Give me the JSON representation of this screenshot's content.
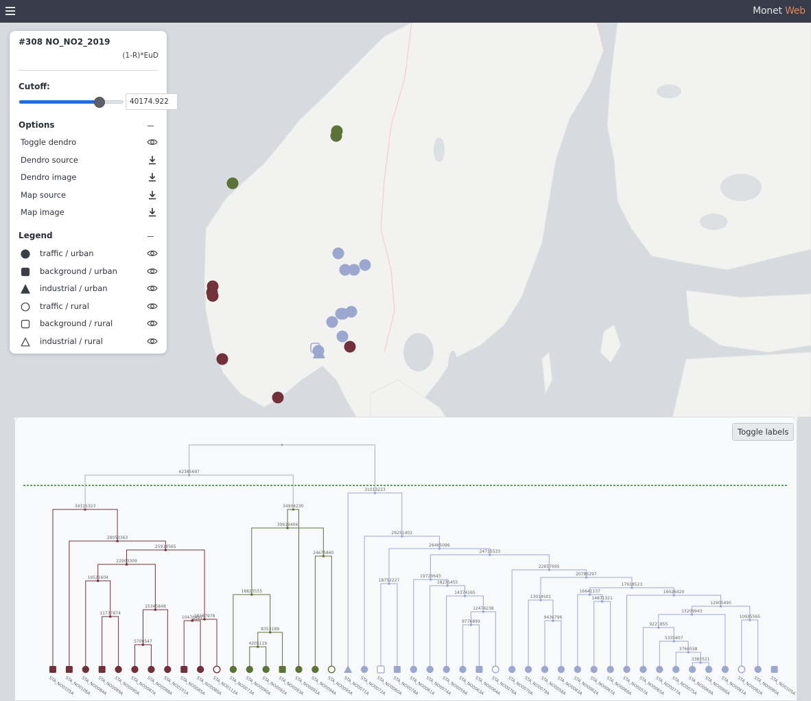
{
  "app": {
    "brand_main": "Monet",
    "brand_accent": "Web"
  },
  "panel": {
    "title": "#308 NO_NO2_2019",
    "subtitle": "(1-R)*EuD",
    "cutoff_label": "Cutoff:",
    "cutoff_value": "40174.922",
    "cutoff_fraction": 0.78,
    "options_title": "Options",
    "options": [
      {
        "label": "Toggle dendro",
        "icon": "eye-icon"
      },
      {
        "label": "Dendro source",
        "icon": "download-icon"
      },
      {
        "label": "Dendro image",
        "icon": "download-icon"
      },
      {
        "label": "Map source",
        "icon": "download-icon"
      },
      {
        "label": "Map image",
        "icon": "download-icon"
      }
    ],
    "legend_title": "Legend",
    "legend": [
      {
        "label": "traffic / urban",
        "symbol": "circle-filled"
      },
      {
        "label": "background / urban",
        "symbol": "square-filled"
      },
      {
        "label": "industrial / urban",
        "symbol": "triangle-filled"
      },
      {
        "label": "traffic / rural",
        "symbol": "circle-outline"
      },
      {
        "label": "background / rural",
        "symbol": "square-outline"
      },
      {
        "label": "industrial / rural",
        "symbol": "triangle-outline"
      }
    ]
  },
  "colors": {
    "cluster_red": "#72303a",
    "cluster_green": "#5b7336",
    "cluster_blue": "#9ba7cf",
    "cutoff_line": "#1f8a1f",
    "root_link": "#a9aeb6"
  },
  "dendro": {
    "toggle_labels": "Toggle labels",
    "leaves": [
      {
        "label": "STA_NO0105A",
        "shape": "square-filled",
        "cluster": "red"
      },
      {
        "label": "STA_NO0106A",
        "shape": "square-filled",
        "cluster": "red"
      },
      {
        "label": "STA_NO0084A",
        "shape": "circle-filled",
        "cluster": "red"
      },
      {
        "label": "STA_NO0089A",
        "shape": "square-filled",
        "cluster": "red"
      },
      {
        "label": "STA_NO0090A",
        "shape": "circle-filled",
        "cluster": "red"
      },
      {
        "label": "STA_NO0087A",
        "shape": "circle-filled",
        "cluster": "red"
      },
      {
        "label": "STA_NO0088A",
        "shape": "circle-filled",
        "cluster": "red"
      },
      {
        "label": "STA_NO0101A",
        "shape": "circle-filled",
        "cluster": "red"
      },
      {
        "label": "STA_NO0085A",
        "shape": "square-filled",
        "cluster": "red"
      },
      {
        "label": "STA_NO0086A",
        "shape": "circle-filled",
        "cluster": "red"
      },
      {
        "label": "STA_NO0112A",
        "shape": "circle-outline",
        "cluster": "red"
      },
      {
        "label": "STA_NO0073A",
        "shape": "circle-filled",
        "cluster": "green"
      },
      {
        "label": "STA_NO0090A",
        "shape": "circle-filled",
        "cluster": "green"
      },
      {
        "label": "STA_NO0092A",
        "shape": "circle-filled",
        "cluster": "green"
      },
      {
        "label": "STA_NO0093A",
        "shape": "square-filled",
        "cluster": "green"
      },
      {
        "label": "STA_NO0091A",
        "shape": "circle-filled",
        "cluster": "green"
      },
      {
        "label": "STA_NO0094A",
        "shape": "circle-filled",
        "cluster": "green"
      },
      {
        "label": "STA_NO0095A",
        "shape": "circle-outline",
        "cluster": "green"
      },
      {
        "label": "STA_NO0071A",
        "shape": "triangle-filled",
        "cluster": "blue"
      },
      {
        "label": "STA_NO0072A",
        "shape": "circle-filled",
        "cluster": "blue"
      },
      {
        "label": "STA_NO0060A",
        "shape": "square-outline",
        "cluster": "blue"
      },
      {
        "label": "STA_NO0078A",
        "shape": "square-filled",
        "cluster": "blue"
      },
      {
        "label": "STA_NO0061A",
        "shape": "circle-filled",
        "cluster": "blue"
      },
      {
        "label": "STA_NO0074A",
        "shape": "circle-filled",
        "cluster": "blue"
      },
      {
        "label": "STA_NO0059A",
        "shape": "circle-filled",
        "cluster": "blue"
      },
      {
        "label": "STA_NO0063A",
        "shape": "circle-filled",
        "cluster": "blue"
      },
      {
        "label": "STA_NO0064A",
        "shape": "square-filled",
        "cluster": "blue"
      },
      {
        "label": "STA_NO0076A",
        "shape": "circle-outline",
        "cluster": "blue"
      },
      {
        "label": "STA_NO0070A",
        "shape": "circle-filled",
        "cluster": "blue"
      },
      {
        "label": "STA_NO0079A",
        "shape": "circle-filled",
        "cluster": "blue"
      },
      {
        "label": "STA_NO0058A",
        "shape": "circle-filled",
        "cluster": "blue"
      },
      {
        "label": "STA_NO0083A",
        "shape": "circle-filled",
        "cluster": "blue"
      },
      {
        "label": "STA_NO0062A",
        "shape": "circle-filled",
        "cluster": "blue"
      },
      {
        "label": "STA_NO0067A",
        "shape": "circle-filled",
        "cluster": "blue"
      },
      {
        "label": "STA_NO0068A",
        "shape": "circle-filled",
        "cluster": "blue"
      },
      {
        "label": "STA_NO0057A",
        "shape": "circle-filled",
        "cluster": "blue"
      },
      {
        "label": "STA_NO0065A",
        "shape": "circle-filled",
        "cluster": "blue"
      },
      {
        "label": "STA_NO0077A",
        "shape": "circle-filled",
        "cluster": "blue"
      },
      {
        "label": "STA_NO0075A",
        "shape": "circle-filled",
        "cluster": "blue"
      },
      {
        "label": "STA_NO0069A",
        "shape": "circle-filled",
        "cluster": "blue"
      },
      {
        "label": "STA_NO0066A",
        "shape": "circle-filled",
        "cluster": "blue"
      },
      {
        "label": "STA_NO0081A",
        "shape": "circle-filled",
        "cluster": "blue"
      },
      {
        "label": "STA_NO0082A",
        "shape": "circle-outline",
        "cluster": "blue"
      },
      {
        "label": "STA_NO0080A",
        "shape": "circle-filled",
        "cluster": "blue"
      },
      {
        "label": "STA_NO0105A",
        "shape": "square-filled",
        "cluster": "blue"
      }
    ],
    "node_labels": [
      "42385697",
      "34315323",
      "34904230",
      "31013223",
      "28053363",
      "25918565",
      "22903309",
      "19521604",
      "11737674",
      "15345848",
      "5700547",
      "10476497",
      "10167978",
      "30619406",
      "24675840",
      "16823555",
      "8353189",
      "4205119",
      "29251402",
      "26465096",
      "24715533",
      "22657695",
      "20785297",
      "18752227",
      "19720645",
      "18235455",
      "14374165",
      "12474238",
      "9776899",
      "17618523",
      "16641137",
      "16026420",
      "13014501",
      "9436796",
      "14871321",
      "13209943",
      "12905490",
      "10935565",
      "9221855",
      "5335607",
      "3766558",
      "3383521"
    ]
  },
  "map": {
    "markers": [
      {
        "shape": "circle-filled",
        "cluster": "green"
      },
      {
        "shape": "circle-filled",
        "cluster": "green"
      },
      {
        "shape": "circle-filled",
        "cluster": "green"
      },
      {
        "shape": "circle-filled",
        "cluster": "red"
      },
      {
        "shape": "circle-filled",
        "cluster": "red"
      },
      {
        "shape": "circle-filled",
        "cluster": "red"
      },
      {
        "shape": "circle-filled",
        "cluster": "red"
      },
      {
        "shape": "circle-filled",
        "cluster": "red"
      },
      {
        "shape": "circle-filled",
        "cluster": "blue"
      },
      {
        "shape": "circle-filled",
        "cluster": "blue"
      },
      {
        "shape": "circle-filled",
        "cluster": "blue"
      },
      {
        "shape": "circle-filled",
        "cluster": "blue"
      },
      {
        "shape": "circle-filled",
        "cluster": "blue"
      },
      {
        "shape": "circle-filled",
        "cluster": "blue"
      },
      {
        "shape": "circle-filled",
        "cluster": "blue"
      },
      {
        "shape": "circle-filled",
        "cluster": "blue"
      },
      {
        "shape": "circle-filled",
        "cluster": "blue"
      },
      {
        "shape": "triangle-filled",
        "cluster": "blue"
      },
      {
        "shape": "square-outline",
        "cluster": "blue"
      }
    ]
  }
}
